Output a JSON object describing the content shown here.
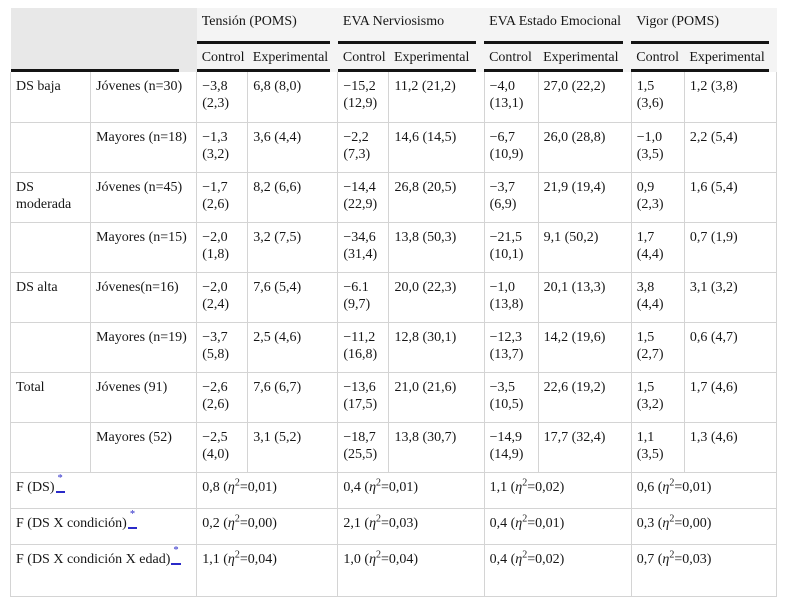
{
  "header": {
    "groups": [
      {
        "label": "Tensión (POMS)"
      },
      {
        "label": "EVA Nerviosismo"
      },
      {
        "label": "EVA Estado Emocional"
      },
      {
        "label": "Vigor (POMS)"
      }
    ],
    "sub_labels": [
      "Control",
      "Experimental"
    ]
  },
  "rows": [
    {
      "group": "DS baja",
      "sub": "Jóvenes (n=30)",
      "cells": [
        {
          "m": "−3,8",
          "sd": "2,3"
        },
        {
          "m": "6,8",
          "sd": "8,0"
        },
        {
          "m": "−15,2",
          "sd": "12,9"
        },
        {
          "m": "11,2",
          "sd": "21,2"
        },
        {
          "m": "−4,0",
          "sd": "13,1"
        },
        {
          "m": "27,0",
          "sd": "22,2"
        },
        {
          "m": "1,5",
          "sd": "3,6"
        },
        {
          "m": "1,2",
          "sd": "3,8"
        }
      ]
    },
    {
      "group": "",
      "sub": "Mayores (n=18)",
      "cells": [
        {
          "m": "−1,3",
          "sd": "3,2"
        },
        {
          "m": "3,6",
          "sd": "4,4"
        },
        {
          "m": "−2,2",
          "sd": "7,3"
        },
        {
          "m": "14,6",
          "sd": "14,5"
        },
        {
          "m": "−6,7",
          "sd": "10,9"
        },
        {
          "m": "26,0",
          "sd": "28,8"
        },
        {
          "m": "−1,0",
          "sd": "3,5"
        },
        {
          "m": "2,2",
          "sd": "5,4"
        }
      ]
    },
    {
      "group": "DS moderada",
      "sub": "Jóvenes (n=45)",
      "cells": [
        {
          "m": "−1,7",
          "sd": "2,6"
        },
        {
          "m": "8,2",
          "sd": "6,6"
        },
        {
          "m": "−14,4",
          "sd": "22,9"
        },
        {
          "m": "26,8",
          "sd": "20,5"
        },
        {
          "m": "−3,7",
          "sd": "6,9"
        },
        {
          "m": "21,9",
          "sd": "19,4"
        },
        {
          "m": "0,9",
          "sd": "2,3"
        },
        {
          "m": "1,6",
          "sd": "5,4"
        }
      ]
    },
    {
      "group": "",
      "sub": "Mayores (n=15)",
      "cells": [
        {
          "m": "−2,0",
          "sd": "1,8"
        },
        {
          "m": "3,2",
          "sd": "7,5"
        },
        {
          "m": "−34,6",
          "sd": "31,4"
        },
        {
          "m": "13,8",
          "sd": "50,3"
        },
        {
          "m": "−21,5",
          "sd": "10,1"
        },
        {
          "m": "9,1",
          "sd": "50,2"
        },
        {
          "m": "1,7",
          "sd": "4,4"
        },
        {
          "m": "0,7",
          "sd": "1,9"
        }
      ]
    },
    {
      "group": "DS alta",
      "sub": "Jóvenes(n=16)",
      "cells": [
        {
          "m": "−2,0",
          "sd": "2,4"
        },
        {
          "m": "7,6",
          "sd": "5,4"
        },
        {
          "m": "−6.1",
          "sd": "9,7"
        },
        {
          "m": "20,0",
          "sd": "22,3"
        },
        {
          "m": "−1,0",
          "sd": "13,8"
        },
        {
          "m": "20,1",
          "sd": "13,3"
        },
        {
          "m": "3,8",
          "sd": "4,4"
        },
        {
          "m": "3,1",
          "sd": "3,2"
        }
      ]
    },
    {
      "group": "",
      "sub": "Mayores (n=19)",
      "cells": [
        {
          "m": "−3,7",
          "sd": "5,8"
        },
        {
          "m": "2,5",
          "sd": "4,6"
        },
        {
          "m": "−11,2",
          "sd": "16,8"
        },
        {
          "m": "12,8",
          "sd": "30,1"
        },
        {
          "m": "−12,3",
          "sd": "13,7"
        },
        {
          "m": "14,2",
          "sd": "19,6"
        },
        {
          "m": "1,5",
          "sd": "2,7"
        },
        {
          "m": "0,6",
          "sd": "4,7"
        }
      ]
    },
    {
      "group": "Total",
      "sub": "Jóvenes (91)",
      "cells": [
        {
          "m": "−2,6",
          "sd": "2,6"
        },
        {
          "m": "7,6",
          "sd": "6,7"
        },
        {
          "m": "−13,6",
          "sd": "17,5"
        },
        {
          "m": "21,0",
          "sd": "21,6"
        },
        {
          "m": "−3,5",
          "sd": "10,5"
        },
        {
          "m": "22,6",
          "sd": "19,2"
        },
        {
          "m": "1,5",
          "sd": "3,2"
        },
        {
          "m": "1,7",
          "sd": "4,6"
        }
      ]
    },
    {
      "group": "",
      "sub": "Mayores (52)",
      "cells": [
        {
          "m": "−2,5",
          "sd": "4,0"
        },
        {
          "m": "3,1",
          "sd": "5,2"
        },
        {
          "m": "−18,7",
          "sd": "25,5"
        },
        {
          "m": "13,8",
          "sd": "30,7"
        },
        {
          "m": "−14,9",
          "sd": "14,9"
        },
        {
          "m": "17,7",
          "sd": "32,4"
        },
        {
          "m": "1,1",
          "sd": "3,5"
        },
        {
          "m": "1,3",
          "sd": "4,6"
        }
      ]
    }
  ],
  "f_rows": [
    {
      "label": "F (DS)",
      "footnote": "*",
      "values": [
        {
          "f": "0,8",
          "eta2": "0,01"
        },
        {
          "f": "0,4",
          "eta2": "0,01"
        },
        {
          "f": "1,1",
          "eta2": "0,02"
        },
        {
          "f": "0,6",
          "eta2": "0,01"
        }
      ]
    },
    {
      "label": "F (DS X condición)",
      "footnote": "*",
      "values": [
        {
          "f": "0,2",
          "eta2": "0,00"
        },
        {
          "f": "2,1",
          "eta2": "0,03"
        },
        {
          "f": "0,4",
          "eta2": "0,01"
        },
        {
          "f": "0,3",
          "eta2": "0,00"
        }
      ]
    },
    {
      "label": "F (DS X condición X edad)",
      "footnote": "*",
      "values": [
        {
          "f": "1,1",
          "eta2": "0,04"
        },
        {
          "f": "1,0",
          "eta2": "0,04"
        },
        {
          "f": "0,4",
          "eta2": "0,02"
        },
        {
          "f": "0,7",
          "eta2": "0,03"
        }
      ]
    }
  ],
  "symbols": {
    "eta": "η",
    "exponent": "2",
    "footnote": "*",
    "open_paren": "(",
    "close_paren": ")",
    "equals": "="
  },
  "colors": {
    "header_band_bg": "#f4f4f4",
    "corner_bg": "#e8e8e8",
    "thick_rule": "#141414",
    "thin_rule": "#d4d4d4",
    "footnote_link": "#2a2ac8",
    "text": "#161616"
  }
}
